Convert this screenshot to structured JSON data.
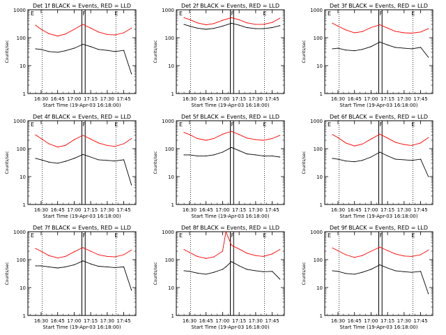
{
  "figure": {
    "ylabel": "Counts/sec",
    "xlabel": "Start Time (19-Apr-03 16:18:00)",
    "y_ticks": [
      "1",
      "10",
      "100",
      "1000"
    ],
    "x_ticks": [
      "16:30",
      "16:45",
      "17:00",
      "17:15",
      "17:30",
      "17:45"
    ],
    "markers": [
      "E",
      "F",
      "E"
    ],
    "colors": {
      "events": "#000000",
      "lld": "#ff0000"
    }
  },
  "chart_data": [
    {
      "type": "line",
      "title": "Det 1f BLACK = Events, RED = LLD",
      "ylabel": "Counts/sec",
      "xlabel": "Start Time (19-Apr-03 16:18:00)",
      "x": [
        "16:25",
        "16:30",
        "16:37",
        "16:45",
        "16:52",
        "17:00",
        "17:08",
        "17:15",
        "17:22",
        "17:30",
        "17:37",
        "17:45",
        "17:52"
      ],
      "xlim": [
        "16:18",
        "17:56"
      ],
      "yscale": "log",
      "ylim": [
        1,
        1000
      ],
      "series": [
        {
          "name": "RED = LLD",
          "color": "#ff0000",
          "values": [
            280,
            200,
            140,
            115,
            135,
            200,
            300,
            220,
            160,
            130,
            125,
            150,
            220
          ]
        },
        {
          "name": "BLACK = Events",
          "color": "#000000",
          "values": [
            40,
            38,
            32,
            30,
            34,
            42,
            58,
            48,
            38,
            35,
            32,
            35,
            5
          ]
        }
      ]
    },
    {
      "type": "line",
      "title": "Det 2f BLACK = Events, RED = LLD",
      "ylabel": "Counts/sec",
      "xlabel": "Start Time (19-Apr-03 16:18:00)",
      "x": [
        "16:25",
        "16:30",
        "16:37",
        "16:45",
        "16:52",
        "17:00",
        "17:08",
        "17:15",
        "17:22",
        "17:30",
        "17:37",
        "17:45",
        "17:52"
      ],
      "xlim": [
        "16:18",
        "17:56"
      ],
      "yscale": "log",
      "ylim": [
        1,
        1000
      ],
      "series": [
        {
          "name": "RED = LLD",
          "color": "#ff0000",
          "values": [
            520,
            450,
            340,
            290,
            320,
            420,
            520,
            440,
            340,
            300,
            300,
            350,
            500
          ]
        },
        {
          "name": "BLACK = Events",
          "color": "#000000",
          "values": [
            300,
            260,
            220,
            200,
            215,
            260,
            330,
            280,
            230,
            210,
            210,
            230,
            270
          ]
        }
      ]
    },
    {
      "type": "line",
      "title": "Det 3f BLACK = Events, RED = LLD",
      "ylabel": "Counts/sec",
      "xlabel": "Start Time (19-Apr-03 16:18:00)",
      "x": [
        "16:25",
        "16:30",
        "16:37",
        "16:45",
        "16:52",
        "17:00",
        "17:08",
        "17:15",
        "17:22",
        "17:30",
        "17:37",
        "17:45",
        "17:52"
      ],
      "xlim": [
        "16:18",
        "17:56"
      ],
      "yscale": "log",
      "ylim": [
        1,
        1000
      ],
      "series": [
        {
          "name": "RED = LLD",
          "color": "#ff0000",
          "values": [
            330,
            260,
            190,
            150,
            165,
            230,
            290,
            220,
            170,
            150,
            145,
            160,
            210
          ]
        },
        {
          "name": "BLACK = Events",
          "color": "#000000",
          "values": [
            40,
            42,
            36,
            34,
            38,
            48,
            70,
            55,
            45,
            42,
            40,
            45,
            20
          ]
        }
      ]
    },
    {
      "type": "line",
      "title": "Det 4f BLACK = Events, RED = LLD",
      "ylabel": "Counts/sec",
      "xlabel": "Start Time (19-Apr-03 16:18:00)",
      "x": [
        "16:25",
        "16:30",
        "16:37",
        "16:45",
        "16:52",
        "17:00",
        "17:08",
        "17:15",
        "17:22",
        "17:30",
        "17:37",
        "17:45",
        "17:52"
      ],
      "xlim": [
        "16:18",
        "17:56"
      ],
      "yscale": "log",
      "ylim": [
        1,
        1000
      ],
      "series": [
        {
          "name": "RED = LLD",
          "color": "#ff0000",
          "values": [
            310,
            230,
            150,
            115,
            130,
            210,
            300,
            220,
            160,
            130,
            120,
            150,
            230
          ]
        },
        {
          "name": "BLACK = Events",
          "color": "#000000",
          "values": [
            45,
            40,
            33,
            30,
            35,
            45,
            62,
            50,
            40,
            38,
            36,
            40,
            5
          ]
        }
      ]
    },
    {
      "type": "line",
      "title": "Det 5f BLACK = Events, RED = LLD",
      "ylabel": "Counts/sec",
      "xlabel": "Start Time (19-Apr-03 16:18:00)",
      "x": [
        "16:25",
        "16:30",
        "16:37",
        "16:45",
        "16:52",
        "17:00",
        "17:08",
        "17:15",
        "17:22",
        "17:30",
        "17:37",
        "17:45",
        "17:52"
      ],
      "xlim": [
        "16:18",
        "17:56"
      ],
      "yscale": "log",
      "ylim": [
        1,
        1000
      ],
      "series": [
        {
          "name": "RED = LLD",
          "color": "#ff0000",
          "values": [
            380,
            320,
            230,
            200,
            230,
            330,
            420,
            320,
            240,
            210,
            200,
            230,
            300
          ]
        },
        {
          "name": "BLACK = Events",
          "color": "#000000",
          "values": [
            60,
            60,
            55,
            55,
            60,
            75,
            110,
            85,
            65,
            60,
            55,
            55,
            50
          ]
        }
      ]
    },
    {
      "type": "line",
      "title": "Det 6f BLACK = Events, RED = LLD",
      "ylabel": "Counts/sec",
      "xlabel": "Start Time (19-Apr-03 16:18:00)",
      "x": [
        "16:25",
        "16:30",
        "16:37",
        "16:45",
        "16:52",
        "17:00",
        "17:08",
        "17:15",
        "17:22",
        "17:30",
        "17:37",
        "17:45",
        "17:52"
      ],
      "xlim": [
        "16:18",
        "17:56"
      ],
      "yscale": "log",
      "ylim": [
        1,
        1000
      ],
      "series": [
        {
          "name": "RED = LLD",
          "color": "#ff0000",
          "values": [
            320,
            250,
            160,
            125,
            145,
            220,
            330,
            240,
            170,
            140,
            130,
            160,
            250
          ]
        },
        {
          "name": "BLACK = Events",
          "color": "#000000",
          "values": [
            45,
            42,
            36,
            34,
            38,
            50,
            75,
            55,
            42,
            40,
            38,
            42,
            10
          ]
        }
      ]
    },
    {
      "type": "line",
      "title": "Det 7f BLACK = Events, RED = LLD",
      "ylabel": "Counts/sec",
      "xlabel": "Start Time (19-Apr-03 16:18:00)",
      "x": [
        "16:25",
        "16:30",
        "16:37",
        "16:45",
        "16:52",
        "17:00",
        "17:08",
        "17:15",
        "17:22",
        "17:30",
        "17:37",
        "17:45",
        "17:52"
      ],
      "xlim": [
        "16:18",
        "17:56"
      ],
      "yscale": "log",
      "ylim": [
        1,
        1000
      ],
      "series": [
        {
          "name": "RED = LLD",
          "color": "#ff0000",
          "values": [
            250,
            200,
            140,
            115,
            130,
            190,
            270,
            200,
            150,
            130,
            125,
            150,
            220
          ]
        },
        {
          "name": "BLACK = Events",
          "color": "#000000",
          "values": [
            60,
            60,
            55,
            50,
            55,
            65,
            90,
            70,
            58,
            55,
            52,
            55,
            8
          ]
        }
      ]
    },
    {
      "type": "line",
      "title": "Det 8f BLACK = Events, RED = LLD",
      "ylabel": "Counts/sec",
      "xlabel": "Start Time (19-Apr-03 16:18:00)",
      "x": [
        "16:25",
        "16:30",
        "16:37",
        "16:45",
        "16:52",
        "17:00",
        "17:03",
        "17:08",
        "17:15",
        "17:22",
        "17:30",
        "17:37",
        "17:45",
        "17:52"
      ],
      "xlim": [
        "16:18",
        "17:56"
      ],
      "yscale": "log",
      "ylim": [
        1,
        1000
      ],
      "series": [
        {
          "name": "RED = LLD",
          "color": "#ff0000",
          "values": [
            230,
            180,
            130,
            110,
            125,
            200,
            1000,
            330,
            240,
            170,
            140,
            130,
            160,
            230
          ]
        },
        {
          "name": "BLACK = Events",
          "color": "#000000",
          "values": [
            40,
            38,
            33,
            30,
            35,
            45,
            55,
            85,
            60,
            45,
            40,
            37,
            38,
            20
          ]
        }
      ]
    },
    {
      "type": "line",
      "title": "Det 9f BLACK = Events, RED = LLD",
      "ylabel": "Counts/sec",
      "xlabel": "Start Time (19-Apr-03 16:18:00)",
      "x": [
        "16:25",
        "16:30",
        "16:37",
        "16:45",
        "16:52",
        "17:00",
        "17:08",
        "17:15",
        "17:22",
        "17:30",
        "17:37",
        "17:45",
        "17:52"
      ],
      "xlim": [
        "16:18",
        "17:56"
      ],
      "yscale": "log",
      "ylim": [
        1,
        1000
      ],
      "series": [
        {
          "name": "RED = LLD",
          "color": "#ff0000",
          "values": [
            260,
            210,
            150,
            120,
            140,
            200,
            280,
            210,
            160,
            135,
            130,
            150,
            220
          ]
        },
        {
          "name": "BLACK = Events",
          "color": "#000000",
          "values": [
            40,
            38,
            32,
            30,
            35,
            45,
            65,
            50,
            40,
            37,
            35,
            38,
            6
          ]
        }
      ]
    }
  ]
}
